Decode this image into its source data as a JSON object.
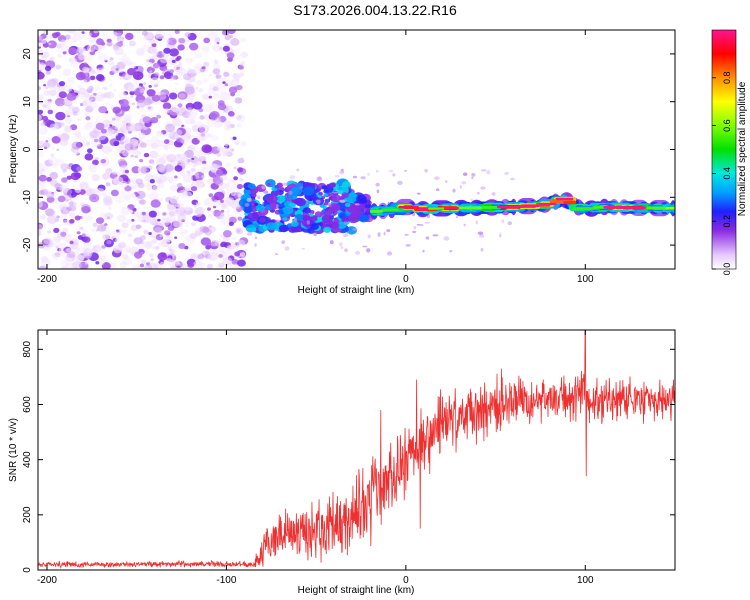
{
  "figure": {
    "title": "S173.2026.004.13.22.R16"
  },
  "chart_data": [
    {
      "type": "heatmap",
      "title": "S173.2026.004.13.22.R16",
      "xlabel": "Height of straight line (km)",
      "ylabel": "Frequency (Hz)",
      "xlim": [
        -205,
        150
      ],
      "ylim": [
        -25,
        25
      ],
      "x_ticks": [
        -200,
        -100,
        0,
        100
      ],
      "y_ticks": [
        -20,
        -10,
        0,
        10,
        20
      ],
      "colorbar": {
        "label": "Normalized spectral amplitude",
        "range": [
          0,
          1
        ],
        "ticks": [
          0.0,
          0.2,
          0.4,
          0.6,
          0.8
        ],
        "tick_labels": [
          "0.0",
          "0.2",
          "0.4",
          "0.6",
          "0.8"
        ]
      },
      "regions": [
        {
          "name": "noise",
          "x_range": [
            -205,
            -90
          ],
          "freq_range": [
            -25,
            25
          ],
          "amplitude_range": [
            0.02,
            0.15
          ]
        },
        {
          "name": "onset",
          "x_range": [
            -90,
            -20
          ],
          "freq_range": [
            -18,
            -4
          ],
          "amplitude_range": [
            0.15,
            0.35
          ]
        },
        {
          "name": "carrier",
          "x_range": [
            -20,
            150
          ],
          "freq_center": -12.5,
          "amplitude_range": [
            0.3,
            1.0
          ]
        }
      ],
      "carrier_track": [
        {
          "x": -20,
          "y": -13
        },
        {
          "x": -10,
          "y": -12.8
        },
        {
          "x": 0,
          "y": -12
        },
        {
          "x": 10,
          "y": -12.5
        },
        {
          "x": 20,
          "y": -12.3
        },
        {
          "x": 40,
          "y": -12.2
        },
        {
          "x": 60,
          "y": -12
        },
        {
          "x": 75,
          "y": -11.7
        },
        {
          "x": 80,
          "y": -11.3
        },
        {
          "x": 88,
          "y": -10.3
        },
        {
          "x": 95,
          "y": -12
        },
        {
          "x": 100,
          "y": -12.5
        },
        {
          "x": 110,
          "y": -12
        },
        {
          "x": 130,
          "y": -12.2
        },
        {
          "x": 150,
          "y": -12.3
        }
      ]
    },
    {
      "type": "line",
      "xlabel": "Height of straight line (km)",
      "ylabel": "SNR (10 * v/v)",
      "xlim": [
        -205,
        150
      ],
      "ylim": [
        0,
        870
      ],
      "x_ticks": [
        -200,
        -100,
        0,
        100
      ],
      "y_ticks": [
        0,
        200,
        400,
        600,
        800
      ],
      "color": "#ee3030",
      "envelope": [
        {
          "x": -205,
          "mean": 20,
          "jitter": 12
        },
        {
          "x": -85,
          "mean": 22,
          "jitter": 14
        },
        {
          "x": -80,
          "mean": 60,
          "jitter": 60
        },
        {
          "x": -75,
          "mean": 120,
          "jitter": 100
        },
        {
          "x": -60,
          "mean": 130,
          "jitter": 110
        },
        {
          "x": -45,
          "mean": 150,
          "jitter": 130
        },
        {
          "x": -30,
          "mean": 200,
          "jitter": 170
        },
        {
          "x": -20,
          "mean": 240,
          "jitter": 180
        },
        {
          "x": -10,
          "mean": 340,
          "jitter": 170
        },
        {
          "x": 0,
          "mean": 400,
          "jitter": 150
        },
        {
          "x": 10,
          "mean": 450,
          "jitter": 150
        },
        {
          "x": 20,
          "mean": 520,
          "jitter": 150
        },
        {
          "x": 40,
          "mean": 590,
          "jitter": 140
        },
        {
          "x": 60,
          "mean": 620,
          "jitter": 120
        },
        {
          "x": 100,
          "mean": 625,
          "jitter": 110
        },
        {
          "x": 150,
          "mean": 610,
          "jitter": 100
        }
      ],
      "spikes": [
        {
          "x": 100,
          "y": 870
        },
        {
          "x": 100.5,
          "y": 340
        },
        {
          "x": 6,
          "y": 690
        },
        {
          "x": 8,
          "y": 150
        },
        {
          "x": -14,
          "y": 580
        }
      ]
    }
  ]
}
